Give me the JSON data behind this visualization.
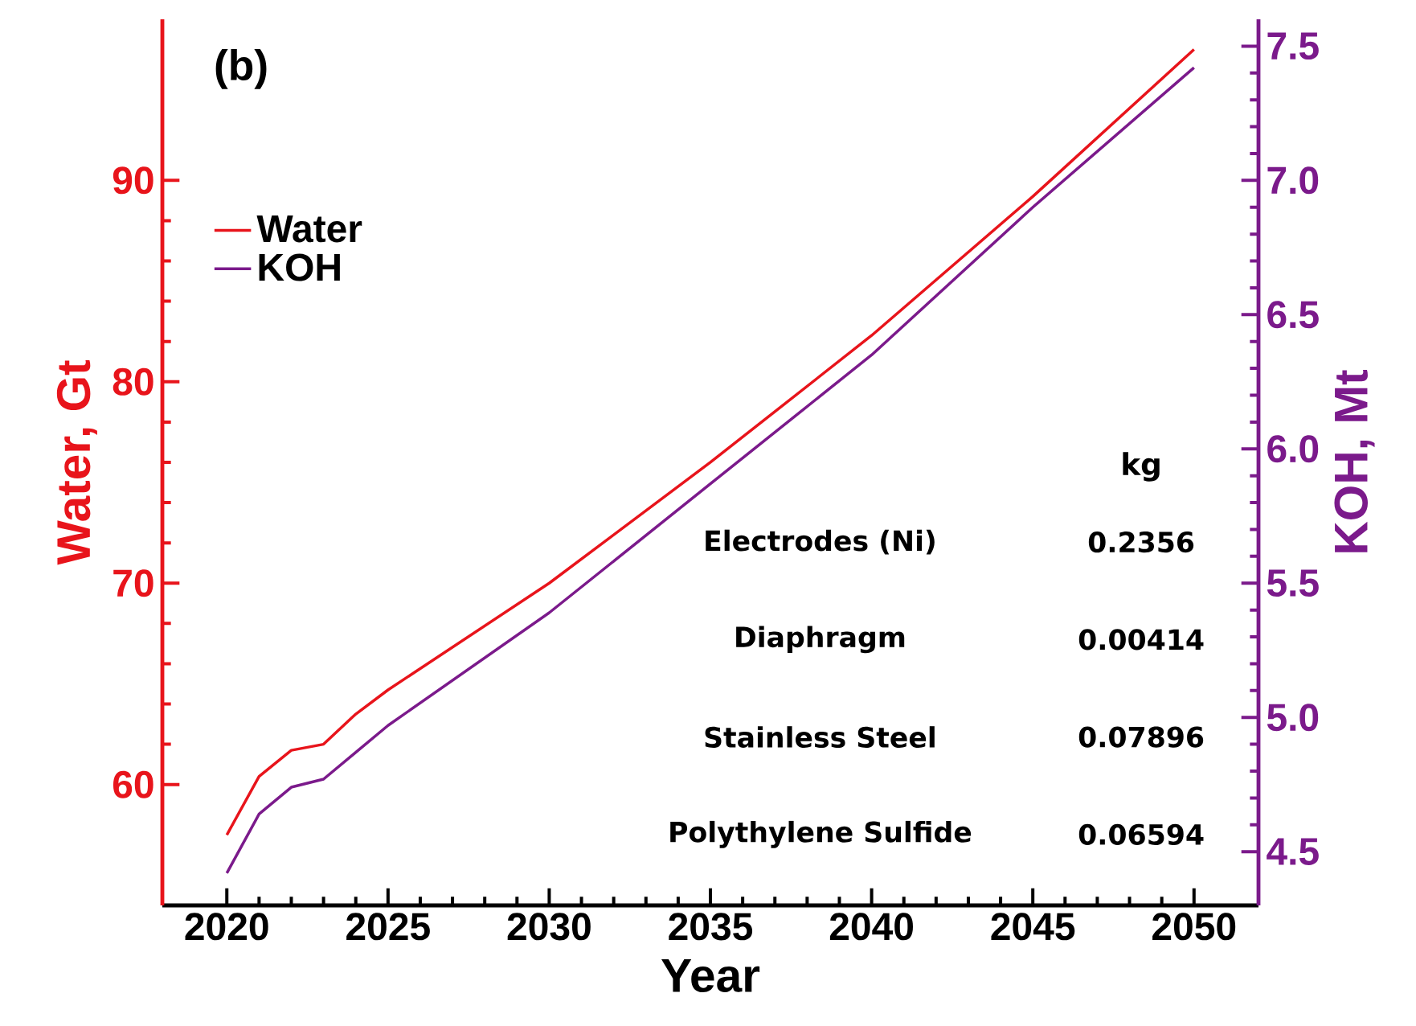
{
  "chart_data": {
    "type": "line",
    "x": [
      2020,
      2021,
      2022,
      2023,
      2024,
      2025,
      2030,
      2035,
      2040,
      2045,
      2050
    ],
    "series": [
      {
        "name": "Water",
        "color": "#e8141b",
        "values": [
          57.5,
          60.4,
          61.7,
          62.0,
          63.5,
          64.7,
          70.0,
          76.0,
          82.3,
          89.2,
          96.5
        ]
      },
      {
        "name": "KOH",
        "color": "#7b1a8b",
        "axis": "y2",
        "values": [
          4.42,
          4.64,
          4.74,
          4.77,
          4.87,
          4.97,
          5.39,
          5.87,
          6.35,
          6.9,
          7.42
        ]
      }
    ],
    "xlabel": "Year",
    "ylabel": "Water, Gt",
    "y2label": "KOH, Mt",
    "xlim": [
      2018,
      2052
    ],
    "xticks": [
      2020,
      2025,
      2030,
      2035,
      2040,
      2045,
      2050
    ],
    "ylim": [
      54,
      98
    ],
    "yticks": [
      60,
      70,
      80,
      90
    ],
    "y2lim": [
      4.3,
      7.6
    ],
    "y2ticks": [
      {
        "value": 4.5,
        "label": "4.5"
      },
      {
        "value": 5.0,
        "label": "5.0"
      },
      {
        "value": 5.5,
        "label": "5.5"
      },
      {
        "value": 6.0,
        "label": "6.0"
      },
      {
        "value": 6.5,
        "label": "6.5"
      },
      {
        "value": 7.0,
        "label": "7.0"
      },
      {
        "value": 7.5,
        "label": "7.5"
      }
    ],
    "legend": "left",
    "grid": false,
    "marker": "none",
    "line_style": "solid",
    "annotations": [
      "(b)",
      "kg",
      "Electrodes (Ni)",
      "0.2356",
      "Diaphragm",
      "0.00414",
      "Stainless Steel",
      "0.07896",
      "Polythylene Sulfide",
      "0.06594"
    ]
  }
}
